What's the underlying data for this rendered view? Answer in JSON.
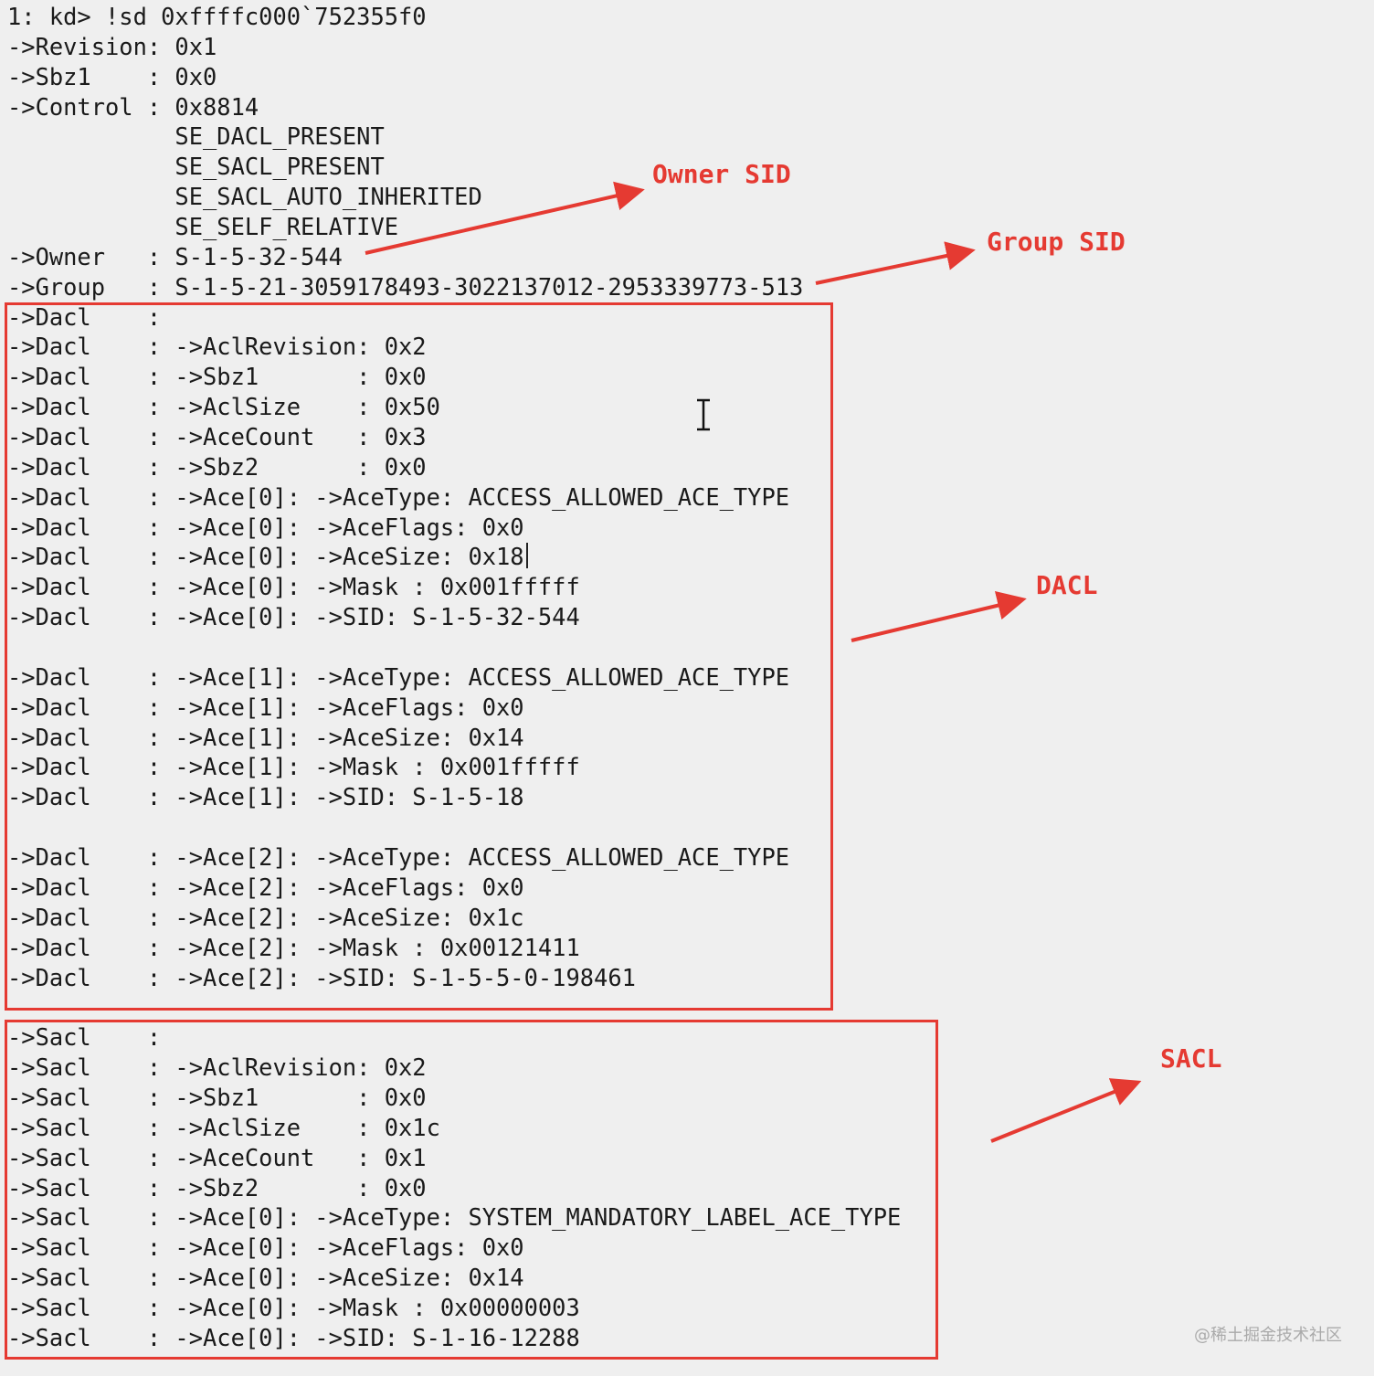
{
  "console": {
    "lines": [
      "1: kd> !sd 0xffffc000`752355f0",
      "->Revision: 0x1",
      "->Sbz1    : 0x0",
      "->Control : 0x8814",
      "            SE_DACL_PRESENT",
      "            SE_SACL_PRESENT",
      "            SE_SACL_AUTO_INHERITED",
      "            SE_SELF_RELATIVE",
      "->Owner   : S-1-5-32-544",
      "->Group   : S-1-5-21-3059178493-3022137012-2953339773-513",
      "->Dacl    :",
      "->Dacl    : ->AclRevision: 0x2",
      "->Dacl    : ->Sbz1       : 0x0",
      "->Dacl    : ->AclSize    : 0x50",
      "->Dacl    : ->AceCount   : 0x3",
      "->Dacl    : ->Sbz2       : 0x0",
      "->Dacl    : ->Ace[0]: ->AceType: ACCESS_ALLOWED_ACE_TYPE",
      "->Dacl    : ->Ace[0]: ->AceFlags: 0x0",
      "->Dacl    : ->Ace[0]: ->AceSize: 0x18",
      "->Dacl    : ->Ace[0]: ->Mask : 0x001fffff",
      "->Dacl    : ->Ace[0]: ->SID: S-1-5-32-544",
      "",
      "->Dacl    : ->Ace[1]: ->AceType: ACCESS_ALLOWED_ACE_TYPE",
      "->Dacl    : ->Ace[1]: ->AceFlags: 0x0",
      "->Dacl    : ->Ace[1]: ->AceSize: 0x14",
      "->Dacl    : ->Ace[1]: ->Mask : 0x001fffff",
      "->Dacl    : ->Ace[1]: ->SID: S-1-5-18",
      "",
      "->Dacl    : ->Ace[2]: ->AceType: ACCESS_ALLOWED_ACE_TYPE",
      "->Dacl    : ->Ace[2]: ->AceFlags: 0x0",
      "->Dacl    : ->Ace[2]: ->AceSize: 0x1c",
      "->Dacl    : ->Ace[2]: ->Mask : 0x00121411",
      "->Dacl    : ->Ace[2]: ->SID: S-1-5-5-0-198461",
      "",
      "->Sacl    :",
      "->Sacl    : ->AclRevision: 0x2",
      "->Sacl    : ->Sbz1       : 0x0",
      "->Sacl    : ->AclSize    : 0x1c",
      "->Sacl    : ->AceCount   : 0x1",
      "->Sacl    : ->Sbz2       : 0x0",
      "->Sacl    : ->Ace[0]: ->AceType: SYSTEM_MANDATORY_LABEL_ACE_TYPE",
      "->Sacl    : ->Ace[0]: ->AceFlags: 0x0",
      "->Sacl    : ->Ace[0]: ->AceSize: 0x14",
      "->Sacl    : ->Ace[0]: ->Mask : 0x00000003",
      "->Sacl    : ->Ace[0]: ->SID: S-1-16-12288"
    ]
  },
  "annotations": {
    "owner_sid": "Owner SID",
    "group_sid": "Group SID",
    "dacl": "DACL",
    "sacl": "SACL",
    "color": "#e53a32"
  },
  "watermark": "@稀土掘金技术社区"
}
